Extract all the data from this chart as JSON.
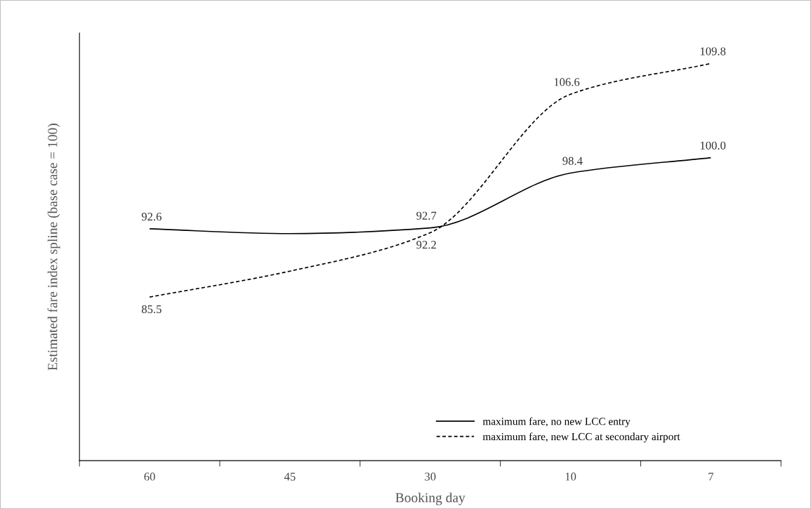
{
  "chart_data": {
    "type": "line",
    "xlabel": "Booking day",
    "ylabel": "Estimated fare index spline (base case = 100)",
    "categories": [
      "60",
      "45",
      "30",
      "10",
      "7"
    ],
    "series": [
      {
        "name": "maximum fare, no new LCC entry",
        "color": "#000000",
        "line_style": "solid",
        "values": [
          92.6,
          92.1,
          92.7,
          98.4,
          100.0
        ],
        "value_labels": [
          "92.6",
          null,
          "92.7",
          "98.4",
          "100.0"
        ]
      },
      {
        "name": "maximum fare, new LCC at secondary airport",
        "color": "#000000",
        "line_style": "dashed",
        "values": [
          85.5,
          88.2,
          92.2,
          106.6,
          109.8
        ],
        "value_labels": [
          "85.5",
          null,
          "92.2",
          "106.6",
          "109.8"
        ]
      }
    ],
    "legend": "bottom right",
    "grid": false,
    "marker": "none"
  }
}
